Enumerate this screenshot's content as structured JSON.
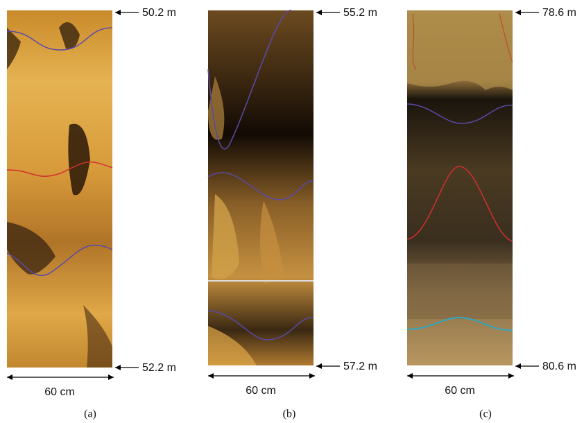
{
  "panels": [
    {
      "top_depth": "50.2 m",
      "bottom_depth": "52.2 m",
      "width": "60 cm",
      "caption": "(a)"
    },
    {
      "top_depth": "55.2 m",
      "bottom_depth": "57.2 m",
      "width": "60 cm",
      "caption": "(b)"
    },
    {
      "top_depth": "78.6 m",
      "bottom_depth": "80.6 m",
      "width": "60 cm",
      "caption": "(c)"
    }
  ]
}
